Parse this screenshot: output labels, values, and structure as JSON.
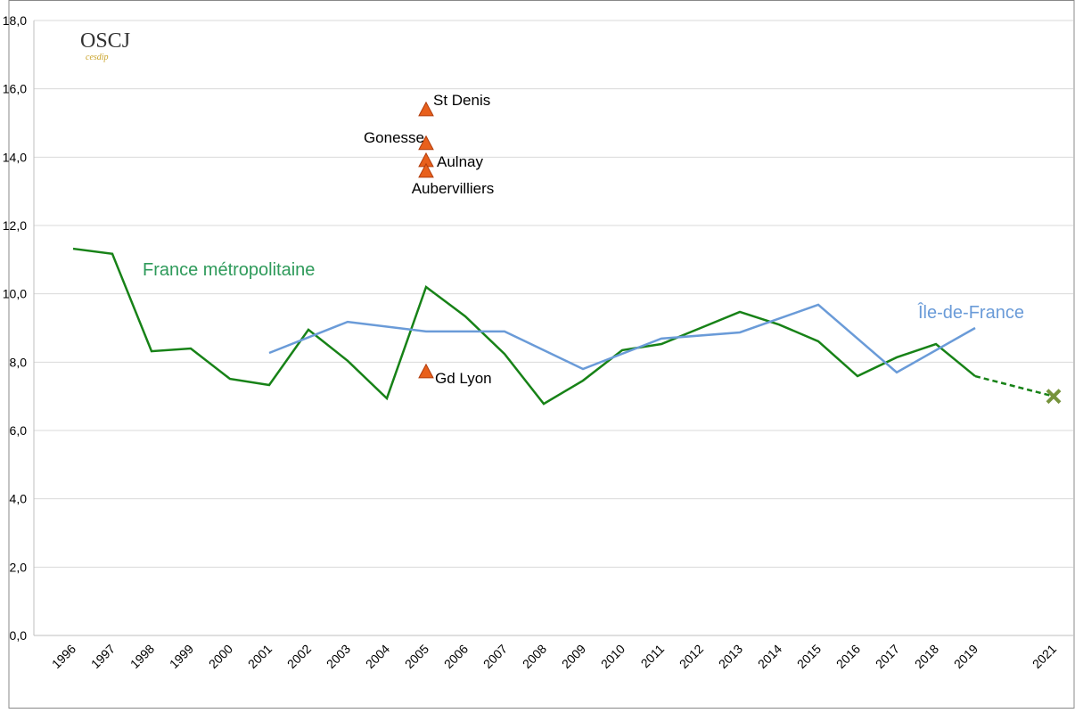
{
  "chart_data": {
    "type": "line",
    "logo": {
      "title": "OSCJ",
      "subtitle": "cesdip"
    },
    "xlim": [
      1995,
      2021.5
    ],
    "xticks": [
      1996,
      1997,
      1998,
      1999,
      2000,
      2001,
      2002,
      2003,
      2004,
      2005,
      2006,
      2007,
      2008,
      2009,
      2010,
      2011,
      2012,
      2013,
      2014,
      2015,
      2016,
      2017,
      2018,
      2019,
      2021
    ],
    "ylim": [
      0,
      18
    ],
    "yticks": [
      {
        "value": 0,
        "label": "0,0"
      },
      {
        "value": 2,
        "label": "2,0"
      },
      {
        "value": 4,
        "label": "4,0"
      },
      {
        "value": 6,
        "label": "6,0"
      },
      {
        "value": 8,
        "label": "8,0"
      },
      {
        "value": 10,
        "label": "10,0"
      },
      {
        "value": 12,
        "label": "12,0"
      },
      {
        "value": 14,
        "label": "14,0"
      },
      {
        "value": 16,
        "label": "16,0"
      },
      {
        "value": 18,
        "label": "18,0"
      }
    ],
    "grid": true,
    "series": [
      {
        "name": "France métropolitaine",
        "color": "#178217",
        "label_color": "#2e9a5a",
        "dash_last": true,
        "last_marker": "x",
        "marker_color": "#76933c",
        "x": [
          1996,
          1997,
          1998,
          1999,
          2000,
          2001,
          2002,
          2003,
          2004,
          2005,
          2006,
          2007,
          2008,
          2009,
          2010,
          2011,
          2012,
          2013,
          2014,
          2015,
          2016,
          2017,
          2018,
          2019,
          2021
        ],
        "values": [
          11.32,
          11.17,
          8.32,
          8.4,
          7.51,
          7.33,
          8.95,
          8.04,
          6.94,
          10.2,
          9.34,
          8.24,
          6.78,
          7.46,
          8.35,
          8.53,
          9.0,
          9.47,
          9.1,
          8.61,
          7.59,
          8.14,
          8.53,
          7.59,
          7.0
        ]
      },
      {
        "name": "Île-de-France",
        "color": "#6a9bd8",
        "label_color": "#6a9bd8",
        "x": [
          2001,
          2003,
          2005,
          2007,
          2009,
          2011,
          2013,
          2015,
          2017,
          2019
        ],
        "values": [
          8.27,
          9.18,
          8.9,
          8.9,
          7.8,
          8.69,
          8.87,
          9.68,
          7.7,
          9.0
        ]
      }
    ],
    "markers": {
      "color": "#e8601c",
      "x": [
        2005,
        2005,
        2005,
        2005,
        2005
      ],
      "values": [
        15.37,
        14.38,
        13.88,
        13.57,
        7.7
      ],
      "labels": [
        "St Denis",
        "Gonesse",
        "Aulnay",
        "Aubervilliers",
        "Gd Lyon"
      ]
    }
  }
}
